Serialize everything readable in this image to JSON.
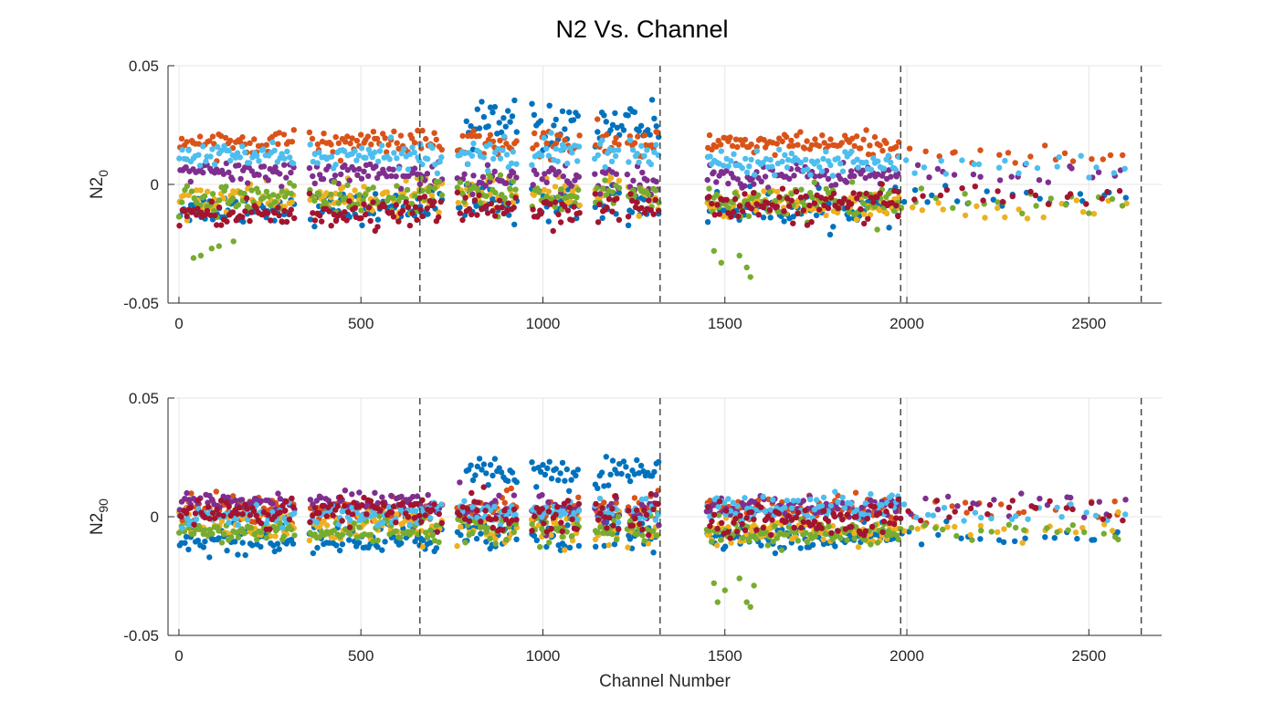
{
  "figure": {
    "title": "N2 Vs. Channel",
    "xlabel": "Channel Number"
  },
  "colors": {
    "axis": "#262626",
    "grid": "#e6e6e6",
    "divider": "#404040",
    "series": [
      "#0072BD",
      "#D95319",
      "#EDB120",
      "#7E2F8E",
      "#77AC30",
      "#4DBEEE",
      "#A2142F"
    ]
  },
  "chart_data": [
    {
      "type": "scatter",
      "ylabel_main": "N2",
      "ylabel_sub": "0",
      "xlim": [
        -30,
        2700
      ],
      "ylim": [
        -0.05,
        0.05
      ],
      "xticks": [
        0,
        500,
        1000,
        1500,
        2000,
        2500
      ],
      "xtick_labels": [
        "0",
        "500",
        "1000",
        "1500",
        "2000",
        "2500"
      ],
      "yticks": [
        -0.05,
        0,
        0.05
      ],
      "ytick_labels": [
        "-0.05",
        "0",
        "0.05"
      ],
      "grid": true,
      "dashed_lines_x": [
        662,
        1322,
        1983,
        2644
      ],
      "series": [
        {
          "values_by_band": [
            {
              "x_range": [
                0,
                662
              ],
              "y_mean": -0.01,
              "y_spread": 0.004
            },
            {
              "x_range": [
                662,
                1322
              ],
              "y_mean": -0.008,
              "y_spread": 0.005
            },
            {
              "x_range": [
                1450,
                1983
              ],
              "y_mean": -0.01,
              "y_spread": 0.004
            },
            {
              "x_range": [
                1983,
                2600
              ],
              "y_mean": -0.006,
              "y_spread": 0.003
            }
          ],
          "highlights": [
            {
              "x_range": [
                790,
                1320
              ],
              "y_mean": 0.026,
              "y_spread": 0.006
            }
          ]
        },
        {
          "values_by_band": [
            {
              "x_range": [
                0,
                662
              ],
              "y_mean": 0.018,
              "y_spread": 0.003
            },
            {
              "x_range": [
                662,
                1322
              ],
              "y_mean": 0.017,
              "y_spread": 0.004
            },
            {
              "x_range": [
                1450,
                1983
              ],
              "y_mean": 0.017,
              "y_spread": 0.003
            },
            {
              "x_range": [
                1983,
                2600
              ],
              "y_mean": 0.012,
              "y_spread": 0.003
            }
          ]
        },
        {
          "values_by_band": [
            {
              "x_range": [
                0,
                662
              ],
              "y_mean": -0.006,
              "y_spread": 0.004
            },
            {
              "x_range": [
                662,
                1322
              ],
              "y_mean": -0.005,
              "y_spread": 0.005
            },
            {
              "x_range": [
                1450,
                1983
              ],
              "y_mean": -0.008,
              "y_spread": 0.004
            },
            {
              "x_range": [
                1983,
                2600
              ],
              "y_mean": -0.011,
              "y_spread": 0.003
            }
          ]
        },
        {
          "values_by_band": [
            {
              "x_range": [
                0,
                662
              ],
              "y_mean": 0.005,
              "y_spread": 0.003
            },
            {
              "x_range": [
                662,
                1322
              ],
              "y_mean": 0.002,
              "y_spread": 0.004
            },
            {
              "x_range": [
                1450,
                1983
              ],
              "y_mean": 0.004,
              "y_spread": 0.003
            },
            {
              "x_range": [
                1983,
                2600
              ],
              "y_mean": 0.004,
              "y_spread": 0.003
            }
          ]
        },
        {
          "values_by_band": [
            {
              "x_range": [
                0,
                662
              ],
              "y_mean": -0.006,
              "y_spread": 0.004
            },
            {
              "x_range": [
                662,
                1322
              ],
              "y_mean": -0.004,
              "y_spread": 0.004
            },
            {
              "x_range": [
                1450,
                1983
              ],
              "y_mean": -0.007,
              "y_spread": 0.004
            },
            {
              "x_range": [
                1983,
                2600
              ],
              "y_mean": -0.008,
              "y_spread": 0.003
            }
          ],
          "outliers": [
            [
              40,
              -0.031
            ],
            [
              60,
              -0.03
            ],
            [
              90,
              -0.027
            ],
            [
              110,
              -0.026
            ],
            [
              150,
              -0.024
            ],
            [
              1470,
              -0.028
            ],
            [
              1490,
              -0.033
            ],
            [
              1540,
              -0.03
            ],
            [
              1560,
              -0.035
            ],
            [
              1570,
              -0.039
            ]
          ]
        },
        {
          "values_by_band": [
            {
              "x_range": [
                0,
                662
              ],
              "y_mean": 0.012,
              "y_spread": 0.003
            },
            {
              "x_range": [
                662,
                1322
              ],
              "y_mean": 0.013,
              "y_spread": 0.004
            },
            {
              "x_range": [
                1450,
                1983
              ],
              "y_mean": 0.01,
              "y_spread": 0.003
            },
            {
              "x_range": [
                1983,
                2600
              ],
              "y_mean": 0.008,
              "y_spread": 0.003
            }
          ]
        },
        {
          "values_by_band": [
            {
              "x_range": [
                0,
                662
              ],
              "y_mean": -0.012,
              "y_spread": 0.003
            },
            {
              "x_range": [
                662,
                1322
              ],
              "y_mean": -0.01,
              "y_spread": 0.004
            },
            {
              "x_range": [
                1450,
                1983
              ],
              "y_mean": -0.009,
              "y_spread": 0.004
            },
            {
              "x_range": [
                1983,
                2600
              ],
              "y_mean": -0.004,
              "y_spread": 0.003
            }
          ]
        }
      ]
    },
    {
      "type": "scatter",
      "ylabel_main": "N2",
      "ylabel_sub": "90",
      "xlim": [
        -30,
        2700
      ],
      "ylim": [
        -0.05,
        0.05
      ],
      "xticks": [
        0,
        500,
        1000,
        1500,
        2000,
        2500
      ],
      "xtick_labels": [
        "0",
        "500",
        "1000",
        "1500",
        "2000",
        "2500"
      ],
      "yticks": [
        -0.05,
        0,
        0.05
      ],
      "ytick_labels": [
        "-0.05",
        "0",
        "0.05"
      ],
      "grid": true,
      "dashed_lines_x": [
        662,
        1322,
        1983,
        2644
      ],
      "series": [
        {
          "values_by_band": [
            {
              "x_range": [
                0,
                662
              ],
              "y_mean": -0.01,
              "y_spread": 0.004
            },
            {
              "x_range": [
                662,
                1322
              ],
              "y_mean": -0.007,
              "y_spread": 0.005
            },
            {
              "x_range": [
                1450,
                1983
              ],
              "y_mean": -0.009,
              "y_spread": 0.003
            },
            {
              "x_range": [
                1983,
                2600
              ],
              "y_mean": -0.008,
              "y_spread": 0.003
            }
          ],
          "highlights": [
            {
              "x_range": [
                790,
                1320
              ],
              "y_mean": 0.019,
              "y_spread": 0.004
            }
          ]
        },
        {
          "values_by_band": [
            {
              "x_range": [
                0,
                662
              ],
              "y_mean": 0.003,
              "y_spread": 0.004
            },
            {
              "x_range": [
                662,
                1322
              ],
              "y_mean": 0.004,
              "y_spread": 0.004
            },
            {
              "x_range": [
                1450,
                1983
              ],
              "y_mean": 0.003,
              "y_spread": 0.003
            },
            {
              "x_range": [
                1983,
                2600
              ],
              "y_mean": 0.004,
              "y_spread": 0.003
            }
          ]
        },
        {
          "values_by_band": [
            {
              "x_range": [
                0,
                662
              ],
              "y_mean": -0.004,
              "y_spread": 0.004
            },
            {
              "x_range": [
                662,
                1322
              ],
              "y_mean": -0.005,
              "y_spread": 0.005
            },
            {
              "x_range": [
                1450,
                1983
              ],
              "y_mean": -0.006,
              "y_spread": 0.003
            },
            {
              "x_range": [
                1983,
                2600
              ],
              "y_mean": -0.006,
              "y_spread": 0.003
            }
          ]
        },
        {
          "values_by_band": [
            {
              "x_range": [
                0,
                662
              ],
              "y_mean": 0.006,
              "y_spread": 0.003
            },
            {
              "x_range": [
                662,
                1322
              ],
              "y_mean": 0.003,
              "y_spread": 0.004
            },
            {
              "x_range": [
                1450,
                1983
              ],
              "y_mean": 0.003,
              "y_spread": 0.003
            },
            {
              "x_range": [
                1983,
                2600
              ],
              "y_mean": 0.005,
              "y_spread": 0.003
            }
          ]
        },
        {
          "values_by_band": [
            {
              "x_range": [
                0,
                662
              ],
              "y_mean": -0.006,
              "y_spread": 0.003
            },
            {
              "x_range": [
                662,
                1322
              ],
              "y_mean": -0.005,
              "y_spread": 0.004
            },
            {
              "x_range": [
                1450,
                1983
              ],
              "y_mean": -0.007,
              "y_spread": 0.003
            },
            {
              "x_range": [
                1983,
                2600
              ],
              "y_mean": -0.006,
              "y_spread": 0.003
            }
          ],
          "outliers": [
            [
              1470,
              -0.028
            ],
            [
              1480,
              -0.036
            ],
            [
              1500,
              -0.031
            ],
            [
              1540,
              -0.026
            ],
            [
              1560,
              -0.036
            ],
            [
              1570,
              -0.038
            ],
            [
              1580,
              -0.029
            ]
          ]
        },
        {
          "values_by_band": [
            {
              "x_range": [
                0,
                662
              ],
              "y_mean": 0.001,
              "y_spread": 0.003
            },
            {
              "x_range": [
                662,
                1322
              ],
              "y_mean": 0.002,
              "y_spread": 0.003
            },
            {
              "x_range": [
                1450,
                1983
              ],
              "y_mean": 0.004,
              "y_spread": 0.003
            },
            {
              "x_range": [
                1983,
                2600
              ],
              "y_mean": 0.001,
              "y_spread": 0.002
            }
          ]
        },
        {
          "values_by_band": [
            {
              "x_range": [
                0,
                662
              ],
              "y_mean": 0.002,
              "y_spread": 0.004
            },
            {
              "x_range": [
                662,
                1322
              ],
              "y_mean": 0.001,
              "y_spread": 0.005
            },
            {
              "x_range": [
                1450,
                1983
              ],
              "y_mean": -0.001,
              "y_spread": 0.004
            },
            {
              "x_range": [
                1983,
                2600
              ],
              "y_mean": 0.002,
              "y_spread": 0.003
            }
          ]
        }
      ]
    }
  ]
}
